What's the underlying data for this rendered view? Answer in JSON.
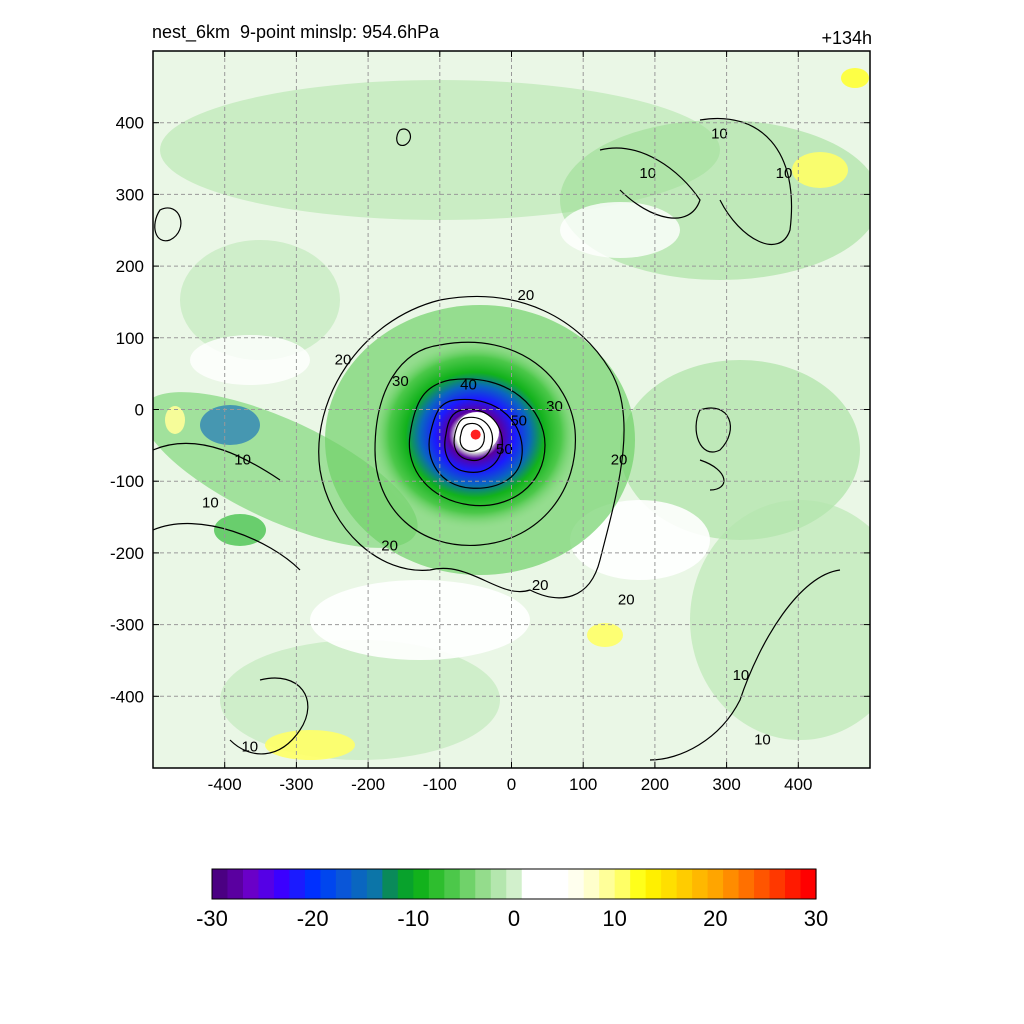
{
  "header": {
    "title_left": "nest_6km  9-point minslp: 954.6hPa",
    "title_right": "+134h"
  },
  "chart_data": {
    "type": "heatmap",
    "title": "nest_6km  9-point minslp: 954.6hPa",
    "forecast_hour_label": "+134h",
    "x_ticks": [
      "-400",
      "-300",
      "-200",
      "-100",
      "0",
      "100",
      "200",
      "300",
      "400"
    ],
    "y_ticks": [
      "400",
      "300",
      "200",
      "100",
      "0",
      "-100",
      "-200",
      "-300",
      "-400"
    ],
    "x_tick_values": [
      -400,
      -300,
      -200,
      -100,
      0,
      100,
      200,
      300,
      400
    ],
    "y_tick_values": [
      400,
      300,
      200,
      100,
      0,
      -100,
      -200,
      -300,
      -400
    ],
    "xlim": [
      -500,
      500
    ],
    "ylim": [
      -500,
      500
    ],
    "grid": true,
    "grid_style": "dashed",
    "center_marker": {
      "x": -50,
      "y": -35,
      "color": "#ff2020"
    },
    "colorbar": {
      "min": -30,
      "max": 30,
      "tick_labels": [
        "-30",
        "-20",
        "-10",
        "0",
        "10",
        "20",
        "30"
      ],
      "tick_values": [
        -30,
        -20,
        -10,
        0,
        10,
        20,
        30
      ],
      "colors": [
        "#4b0082",
        "#5a00a0",
        "#6a00c8",
        "#5500e6",
        "#3b00ff",
        "#1b1bff",
        "#0030ff",
        "#0046ee",
        "#0a56d8",
        "#0a66c0",
        "#0c75a8",
        "#0a8a5a",
        "#08a22c",
        "#12b21c",
        "#2ebe2e",
        "#4cc84a",
        "#70d26a",
        "#94dc8c",
        "#b4e6ae",
        "#d2f0cc",
        "#ffffff",
        "#ffffff",
        "#ffffff",
        "#ffffee",
        "#ffffcc",
        "#ffff99",
        "#ffff66",
        "#ffff1a",
        "#fff000",
        "#ffdf00",
        "#ffcc00",
        "#ffb800",
        "#ffa500",
        "#ff8c00",
        "#ff7000",
        "#ff5500",
        "#ff3800",
        "#ff1a00",
        "#ff0000"
      ]
    },
    "contour_labels": [
      {
        "text": "10",
        "x": 290,
        "y": 385
      },
      {
        "text": "10",
        "x": 190,
        "y": 330
      },
      {
        "text": "10",
        "x": 380,
        "y": 330
      },
      {
        "text": "20",
        "x": 20,
        "y": 160
      },
      {
        "text": "20",
        "x": -235,
        "y": 70
      },
      {
        "text": "30",
        "x": -155,
        "y": 40
      },
      {
        "text": "40",
        "x": -60,
        "y": 35
      },
      {
        "text": "30",
        "x": 60,
        "y": 5
      },
      {
        "text": "50",
        "x": 10,
        "y": -15
      },
      {
        "text": "50",
        "x": -10,
        "y": -55
      },
      {
        "text": "20",
        "x": 150,
        "y": -70
      },
      {
        "text": "10",
        "x": -375,
        "y": -70
      },
      {
        "text": "10",
        "x": -420,
        "y": -130
      },
      {
        "text": "20",
        "x": -170,
        "y": -190
      },
      {
        "text": "20",
        "x": 40,
        "y": -245
      },
      {
        "text": "20",
        "x": 160,
        "y": -265
      },
      {
        "text": "10",
        "x": 320,
        "y": -370
      },
      {
        "text": "10",
        "x": -365,
        "y": -470
      },
      {
        "text": "10",
        "x": 350,
        "y": -460
      }
    ]
  }
}
